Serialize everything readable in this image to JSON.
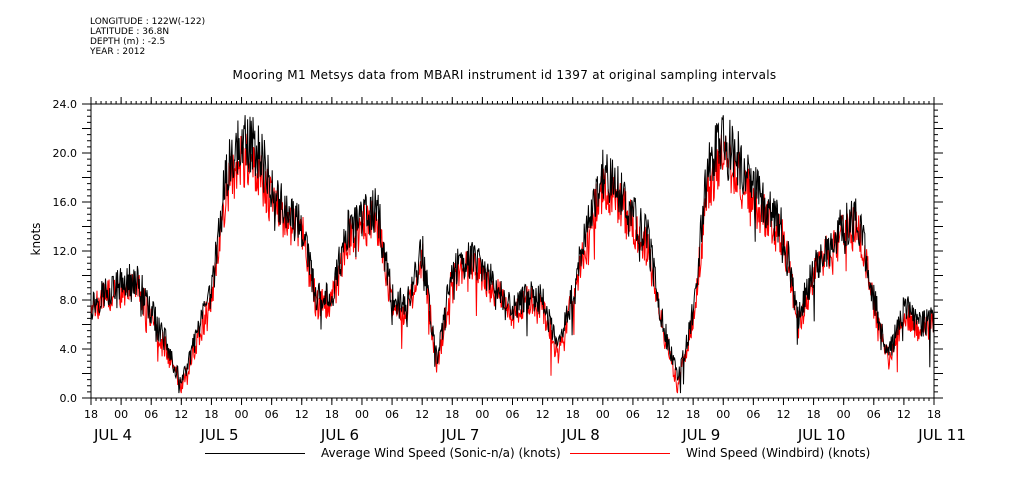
{
  "meta": {
    "longitude": "LONGITUDE : 122W(-122)",
    "latitude": "LATITUDE : 36.8N",
    "depth": "DEPTH (m) : -2.5",
    "year": "YEAR : 2012"
  },
  "chart_data": {
    "type": "line",
    "title": "Mooring M1 Metsys data from MBARI instrument id 1397 at original sampling intervals",
    "xlabel": "",
    "ylabel": "knots",
    "ylim": [
      0,
      24
    ],
    "xlim": [
      "2012-07-04T18:00",
      "2012-07-11T18:00"
    ],
    "y_ticks": [
      "0.0",
      "4.0",
      "8.0",
      "12.0",
      "16.0",
      "20.0",
      "24.0"
    ],
    "x_hour_ticks": [
      "18",
      "00",
      "06",
      "12",
      "18",
      "00",
      "06",
      "12",
      "18",
      "00",
      "06",
      "12",
      "18",
      "00",
      "06",
      "12",
      "18",
      "00",
      "06",
      "12",
      "18",
      "00",
      "06",
      "12",
      "18",
      "00",
      "06",
      "12",
      "18"
    ],
    "x_day_labels": [
      "JUL 4",
      "JUL 5",
      "JUL 6",
      "JUL 7",
      "JUL 8",
      "JUL 9",
      "JUL 10",
      "JUL 11"
    ],
    "grid": false,
    "legend_position": "bottom",
    "series": [
      {
        "name": "Average Wind Speed (Sonic-n/a) (knots)",
        "color": "#000000",
        "x": [
          "2012-07-04T18:00",
          "2012-07-04T21:00",
          "2012-07-05T00:00",
          "2012-07-05T03:00",
          "2012-07-05T06:00",
          "2012-07-05T09:00",
          "2012-07-05T12:00",
          "2012-07-05T15:00",
          "2012-07-05T18:00",
          "2012-07-05T21:00",
          "2012-07-06T00:00",
          "2012-07-06T03:00",
          "2012-07-06T06:00",
          "2012-07-06T09:00",
          "2012-07-06T12:00",
          "2012-07-06T15:00",
          "2012-07-06T18:00",
          "2012-07-06T21:00",
          "2012-07-07T00:00",
          "2012-07-07T03:00",
          "2012-07-07T06:00",
          "2012-07-07T09:00",
          "2012-07-07T12:00",
          "2012-07-07T15:00",
          "2012-07-07T18:00",
          "2012-07-07T21:00",
          "2012-07-08T00:00",
          "2012-07-08T03:00",
          "2012-07-08T06:00",
          "2012-07-08T09:00",
          "2012-07-08T12:00",
          "2012-07-08T15:00",
          "2012-07-08T18:00",
          "2012-07-08T21:00",
          "2012-07-09T00:00",
          "2012-07-09T03:00",
          "2012-07-09T06:00",
          "2012-07-09T09:00",
          "2012-07-09T12:00",
          "2012-07-09T15:00",
          "2012-07-09T18:00",
          "2012-07-09T21:00",
          "2012-07-10T00:00",
          "2012-07-10T03:00",
          "2012-07-10T06:00",
          "2012-07-10T09:00",
          "2012-07-10T12:00",
          "2012-07-10T15:00",
          "2012-07-10T18:00",
          "2012-07-10T21:00",
          "2012-07-11T00:00",
          "2012-07-11T03:00",
          "2012-07-11T06:00",
          "2012-07-11T09:00",
          "2012-07-11T12:00",
          "2012-07-11T15:00",
          "2012-07-11T18:00"
        ],
        "values": [
          7.5,
          8.8,
          9.2,
          9.8,
          7.0,
          4.5,
          1.0,
          5.0,
          8.5,
          18.5,
          21.0,
          20.5,
          17.5,
          15.0,
          14.0,
          8.0,
          8.5,
          13.5,
          14.5,
          15.5,
          8.0,
          7.5,
          12.0,
          3.0,
          10.5,
          11.5,
          10.5,
          9.0,
          7.0,
          8.5,
          8.0,
          4.0,
          8.5,
          14.0,
          18.5,
          17.0,
          15.0,
          13.0,
          6.0,
          1.5,
          7.0,
          19.0,
          21.0,
          19.5,
          17.0,
          15.5,
          13.5,
          6.5,
          10.5,
          12.5,
          14.0,
          14.5,
          8.0,
          3.5,
          7.5,
          6.0,
          6.5
        ]
      },
      {
        "name": "Wind Speed (Windbird) (knots)",
        "color": "#ff0000",
        "x": [
          "2012-07-04T18:00",
          "2012-07-04T21:00",
          "2012-07-05T00:00",
          "2012-07-05T03:00",
          "2012-07-05T06:00",
          "2012-07-05T09:00",
          "2012-07-05T12:00",
          "2012-07-05T15:00",
          "2012-07-05T18:00",
          "2012-07-05T21:00",
          "2012-07-06T00:00",
          "2012-07-06T03:00",
          "2012-07-06T06:00",
          "2012-07-06T09:00",
          "2012-07-06T12:00",
          "2012-07-06T15:00",
          "2012-07-06T18:00",
          "2012-07-06T21:00",
          "2012-07-07T00:00",
          "2012-07-07T03:00",
          "2012-07-07T06:00",
          "2012-07-07T09:00",
          "2012-07-07T12:00",
          "2012-07-07T15:00",
          "2012-07-07T18:00",
          "2012-07-07T21:00",
          "2012-07-08T00:00",
          "2012-07-08T03:00",
          "2012-07-08T06:00",
          "2012-07-08T09:00",
          "2012-07-08T12:00",
          "2012-07-08T15:00",
          "2012-07-08T18:00",
          "2012-07-08T21:00",
          "2012-07-09T00:00",
          "2012-07-09T03:00",
          "2012-07-09T06:00",
          "2012-07-09T09:00",
          "2012-07-09T12:00",
          "2012-07-09T15:00",
          "2012-07-09T18:00",
          "2012-07-09T21:00",
          "2012-07-10T00:00",
          "2012-07-10T03:00",
          "2012-07-10T06:00",
          "2012-07-10T09:00",
          "2012-07-10T12:00",
          "2012-07-10T15:00",
          "2012-07-10T18:00",
          "2012-07-10T21:00",
          "2012-07-11T00:00",
          "2012-07-11T03:00",
          "2012-07-11T06:00",
          "2012-07-11T09:00",
          "2012-07-11T12:00",
          "2012-07-11T15:00",
          "2012-07-11T18:00"
        ],
        "values": [
          7.0,
          8.3,
          8.7,
          9.2,
          6.5,
          4.0,
          0.8,
          4.5,
          8.0,
          17.0,
          19.5,
          19.0,
          16.0,
          14.0,
          13.5,
          7.5,
          8.0,
          13.0,
          14.0,
          14.5,
          7.5,
          7.0,
          11.5,
          2.5,
          10.0,
          11.0,
          10.0,
          8.5,
          6.5,
          8.0,
          7.5,
          3.5,
          8.0,
          13.0,
          17.5,
          16.0,
          14.0,
          12.0,
          5.5,
          1.0,
          6.5,
          17.5,
          19.5,
          18.0,
          16.0,
          14.5,
          13.0,
          6.0,
          10.0,
          12.0,
          13.5,
          14.0,
          7.5,
          3.0,
          7.0,
          5.5,
          6.0
        ]
      }
    ]
  }
}
